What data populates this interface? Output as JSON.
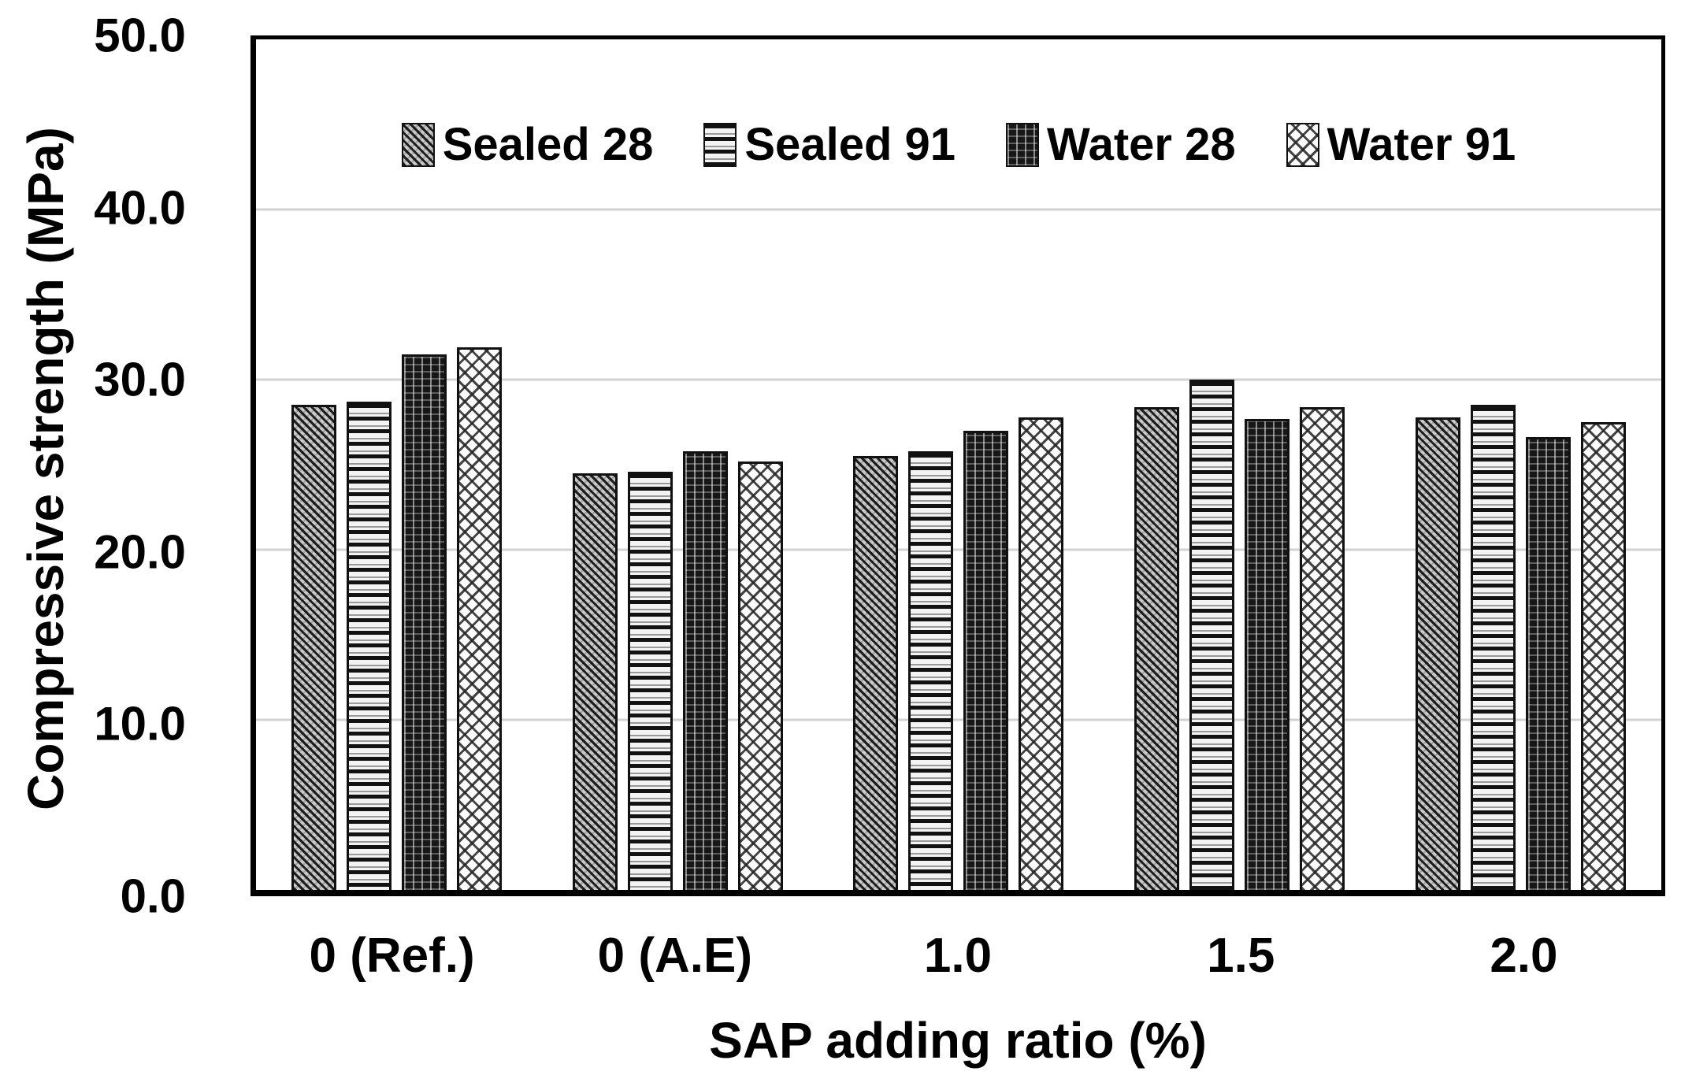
{
  "figure": {
    "y_axis_title": "Compressive strength (MPa)",
    "x_axis_title": "SAP adding ratio (%)"
  },
  "chart_data": {
    "type": "bar",
    "title": "",
    "xlabel": "SAP adding ratio (%)",
    "ylabel": "Compressive strength (MPa)",
    "ylim": [
      0,
      50
    ],
    "yticks": [
      {
        "value": 0,
        "label": "0.0"
      },
      {
        "value": 10,
        "label": "10.0"
      },
      {
        "value": 20,
        "label": "20.0"
      },
      {
        "value": 30,
        "label": "30.0"
      },
      {
        "value": 40,
        "label": "40.0"
      },
      {
        "value": 50,
        "label": "50.0"
      }
    ],
    "grid": true,
    "legend_position": "top-inside",
    "categories": [
      "0 (Ref.)",
      "0 (A.E)",
      "1.0",
      "1.5",
      "2.0"
    ],
    "series": [
      {
        "name": "Sealed  28",
        "pattern": "diagonal-hatch",
        "values": [
          28.5,
          24.5,
          25.5,
          28.4,
          27.8
        ]
      },
      {
        "name": "Sealed 91",
        "pattern": "horizontal-lines",
        "values": [
          28.7,
          24.6,
          25.8,
          30.0,
          28.5
        ]
      },
      {
        "name": "Water 28",
        "pattern": "dark-vertical-weave",
        "values": [
          31.5,
          25.8,
          27.0,
          27.7,
          26.6
        ]
      },
      {
        "name": "Water 91",
        "pattern": "light-crosshatch",
        "values": [
          31.9,
          25.2,
          27.8,
          28.4,
          27.5
        ]
      }
    ],
    "colors": {
      "axis": "#000000",
      "gridline": "#d2d2d2",
      "text": "#000000"
    }
  }
}
